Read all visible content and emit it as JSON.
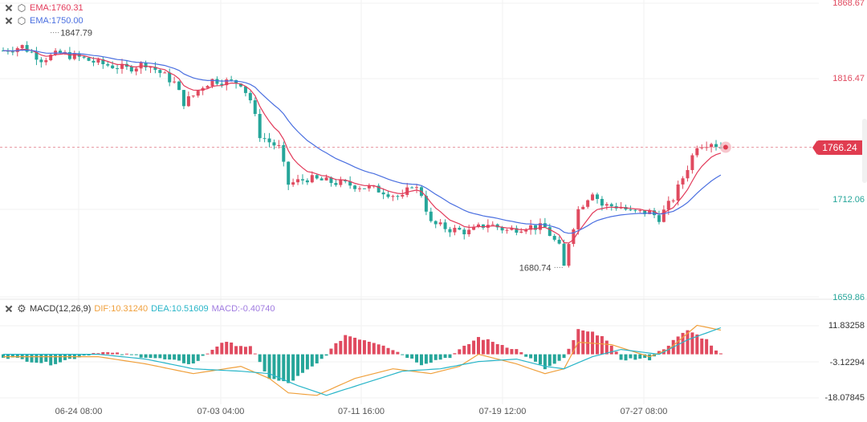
{
  "legend": {
    "ema_fast": "EMA:1760.31",
    "ema_slow": "EMA:1750.00",
    "macd_name": "MACD(12,26,9)",
    "dif": "DIF:10.31240",
    "dea": "DEA:10.51609",
    "macd": "MACD:-0.40740"
  },
  "price_axis": [
    "1868.67",
    "1816.47",
    "1712.06",
    "1659.86"
  ],
  "macd_axis": [
    "11.83258",
    "-3.12294",
    "-18.07845"
  ],
  "time_axis": [
    "06-24 08:00",
    "07-03 04:00",
    "07-11 16:00",
    "07-19 12:00",
    "07-27 08:00"
  ],
  "current_price": "1766.24",
  "annotations": {
    "high_label": "1847.79",
    "low_label": "1680.74"
  },
  "colors": {
    "up": "#e04a5f",
    "down": "#26a69a",
    "ema_fast": "#e23a5a",
    "ema_slow": "#4a6fe0",
    "dif": "#f0a03c",
    "dea": "#28b5c8"
  },
  "chart_data": {
    "type": "candlestick",
    "price_range": [
      1659.86,
      1868.67
    ],
    "macd_range": [
      -18.07845,
      11.83258
    ],
    "anchors": [
      [
        0,
        1835
      ],
      [
        4,
        1838
      ],
      [
        8,
        1829
      ],
      [
        12,
        1833
      ],
      [
        16,
        1830
      ],
      [
        20,
        1826
      ],
      [
        26,
        1822
      ],
      [
        30,
        1826
      ],
      [
        34,
        1817
      ],
      [
        36,
        1812
      ],
      [
        38,
        1798
      ],
      [
        40,
        1803
      ],
      [
        42,
        1810
      ],
      [
        44,
        1814
      ],
      [
        47,
        1813
      ],
      [
        50,
        1812
      ],
      [
        52,
        1800
      ],
      [
        54,
        1775
      ],
      [
        56,
        1770
      ],
      [
        58,
        1766
      ],
      [
        60,
        1740
      ],
      [
        64,
        1744
      ],
      [
        68,
        1742
      ],
      [
        72,
        1740
      ],
      [
        76,
        1738
      ],
      [
        80,
        1735
      ],
      [
        84,
        1730
      ],
      [
        86,
        1740
      ],
      [
        88,
        1733
      ],
      [
        90,
        1712
      ],
      [
        94,
        1708
      ],
      [
        98,
        1706
      ],
      [
        102,
        1712
      ],
      [
        106,
        1707
      ],
      [
        110,
        1710
      ],
      [
        114,
        1709
      ],
      [
        117,
        1695
      ],
      [
        118,
        1682
      ],
      [
        119,
        1699
      ],
      [
        121,
        1722
      ],
      [
        124,
        1735
      ],
      [
        126,
        1725
      ],
      [
        130,
        1724
      ],
      [
        132,
        1720
      ],
      [
        136,
        1720
      ],
      [
        138,
        1716
      ],
      [
        141,
        1730
      ],
      [
        144,
        1752
      ],
      [
        146,
        1768
      ],
      [
        149,
        1770
      ],
      [
        151,
        1766
      ]
    ],
    "macd_hist_anchors": [
      [
        0,
        -1
      ],
      [
        10,
        -4
      ],
      [
        20,
        1
      ],
      [
        30,
        -1
      ],
      [
        40,
        -4
      ],
      [
        46,
        5
      ],
      [
        52,
        3
      ],
      [
        56,
        -10
      ],
      [
        60,
        -12
      ],
      [
        66,
        -4
      ],
      [
        72,
        8
      ],
      [
        80,
        4
      ],
      [
        88,
        -4
      ],
      [
        94,
        -1
      ],
      [
        100,
        7
      ],
      [
        108,
        2
      ],
      [
        114,
        -6
      ],
      [
        118,
        -2
      ],
      [
        121,
        10
      ],
      [
        126,
        8
      ],
      [
        130,
        -2
      ],
      [
        136,
        -2
      ],
      [
        140,
        4
      ],
      [
        144,
        10
      ],
      [
        148,
        6
      ],
      [
        151,
        0
      ]
    ],
    "dif_anchors": [
      [
        0,
        -1
      ],
      [
        20,
        -1
      ],
      [
        30,
        -4
      ],
      [
        40,
        -8
      ],
      [
        50,
        -5
      ],
      [
        56,
        -10
      ],
      [
        60,
        -16
      ],
      [
        66,
        -17
      ],
      [
        74,
        -10
      ],
      [
        82,
        -6
      ],
      [
        90,
        -8
      ],
      [
        96,
        -5
      ],
      [
        100,
        0
      ],
      [
        108,
        -4
      ],
      [
        114,
        -8
      ],
      [
        118,
        -6
      ],
      [
        121,
        5
      ],
      [
        128,
        4
      ],
      [
        136,
        -1
      ],
      [
        140,
        2
      ],
      [
        146,
        12
      ],
      [
        151,
        10
      ]
    ],
    "dea_anchors": [
      [
        0,
        0
      ],
      [
        20,
        0
      ],
      [
        30,
        -2
      ],
      [
        40,
        -6
      ],
      [
        50,
        -7
      ],
      [
        56,
        -8
      ],
      [
        62,
        -13
      ],
      [
        68,
        -17
      ],
      [
        76,
        -12
      ],
      [
        84,
        -7
      ],
      [
        92,
        -6
      ],
      [
        100,
        -3
      ],
      [
        108,
        -2
      ],
      [
        114,
        -5
      ],
      [
        118,
        -6
      ],
      [
        124,
        -1
      ],
      [
        130,
        2
      ],
      [
        138,
        0
      ],
      [
        144,
        6
      ],
      [
        151,
        11
      ]
    ]
  }
}
